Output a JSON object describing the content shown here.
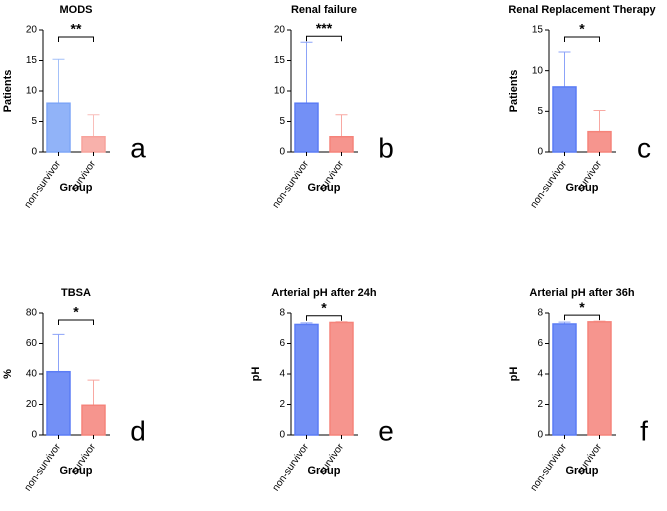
{
  "chart_data": [
    {
      "type": "bar",
      "title": "MODS",
      "ylabel": "Patients",
      "xlabel": "Group",
      "panel": "a",
      "significance": "**",
      "categories": [
        "non-survivor",
        "survivor"
      ],
      "values": [
        8,
        2.5
      ],
      "errors": [
        7.2,
        3.6
      ],
      "colors": [
        "#7ea6f7",
        "#f7a39c"
      ],
      "ylim": [
        0,
        20
      ],
      "yticks": [
        0,
        5,
        10,
        15,
        20
      ]
    },
    {
      "type": "bar",
      "title": "Renal failure",
      "ylabel": "",
      "xlabel": "Group",
      "panel": "b",
      "significance": "***",
      "categories": [
        "non-survivor",
        "survivor"
      ],
      "values": [
        8,
        2.5
      ],
      "errors": [
        10,
        3.6
      ],
      "colors": [
        "#5b7cf5",
        "#f5837a"
      ],
      "ylim": [
        0,
        20
      ],
      "yticks": [
        0,
        5,
        10,
        15,
        20
      ]
    },
    {
      "type": "bar",
      "title": "Renal Replacement Therapy",
      "ylabel": "Patients",
      "xlabel": "Group",
      "panel": "c",
      "significance": "*",
      "categories": [
        "non-survivor",
        "survivor"
      ],
      "values": [
        8,
        2.5
      ],
      "errors": [
        4.3,
        2.6
      ],
      "colors": [
        "#5b7cf5",
        "#f5837a"
      ],
      "ylim": [
        0,
        15
      ],
      "yticks": [
        0,
        5,
        10,
        15
      ]
    },
    {
      "type": "bar",
      "title": "TBSA",
      "ylabel": "%",
      "xlabel": "Group",
      "panel": "d",
      "significance": "*",
      "categories": [
        "non-survivor",
        "survivor"
      ],
      "values": [
        41.5,
        19.5
      ],
      "errors": [
        24.5,
        16.5
      ],
      "colors": [
        "#5b7cf5",
        "#f5837a"
      ],
      "ylim": [
        0,
        80
      ],
      "yticks": [
        0,
        20,
        40,
        60,
        80
      ]
    },
    {
      "type": "bar",
      "title": "Arterial pH after 24h",
      "ylabel": "pH",
      "xlabel": "Group",
      "panel": "e",
      "significance": "*",
      "categories": [
        "non-survivor",
        "survivor"
      ],
      "values": [
        7.25,
        7.38
      ],
      "errors": [
        0.1,
        0.05
      ],
      "colors": [
        "#5b7cf5",
        "#f5837a"
      ],
      "ylim": [
        0,
        8
      ],
      "yticks": [
        0,
        2,
        4,
        6,
        8
      ]
    },
    {
      "type": "bar",
      "title": "Arterial pH after 36h",
      "ylabel": "pH",
      "xlabel": "Group",
      "panel": "f",
      "significance": "*",
      "categories": [
        "non-survivor",
        "survivor"
      ],
      "values": [
        7.28,
        7.42
      ],
      "errors": [
        0.12,
        0.05
      ],
      "colors": [
        "#5b7cf5",
        "#f5837a"
      ],
      "ylim": [
        0,
        8
      ],
      "yticks": [
        0,
        2,
        4,
        6,
        8
      ]
    }
  ]
}
